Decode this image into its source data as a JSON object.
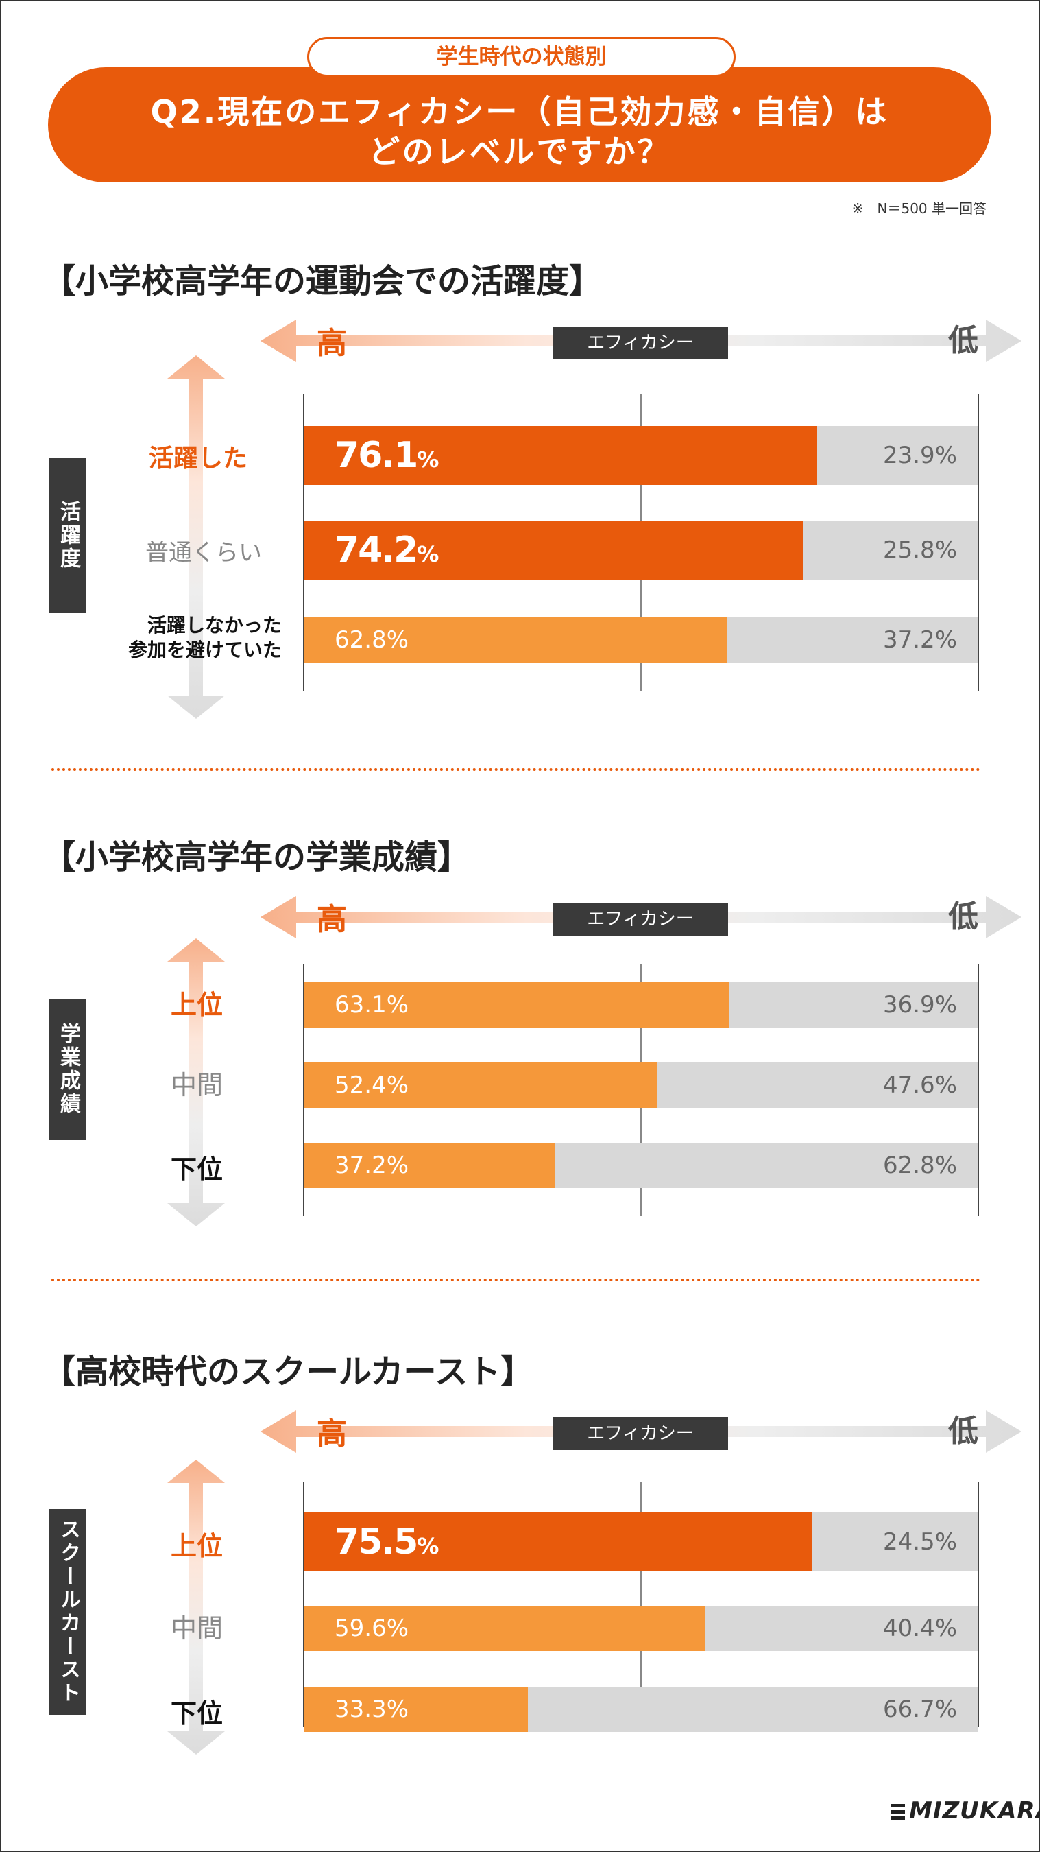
{
  "header": {
    "pill": "学生時代の状態別",
    "title_line1": "Q2.現在のエフィカシー（自己効力感・自信）は",
    "title_line2": "どのレベルですか？",
    "note": "※　N＝500 単一回答"
  },
  "axis": {
    "high": "高",
    "low": "低",
    "efficacy": "エフィカシー"
  },
  "colors": {
    "accent": "#e85a0c",
    "light_orange": "#f5983a",
    "gray_bar": "#d8d8d8",
    "dark_label": "#3a3a3a"
  },
  "chart_data": [
    {
      "type": "bar",
      "stacked": true,
      "orientation": "horizontal",
      "title": "【小学校高学年の運動会での活躍度】",
      "side_label": "活躍度",
      "categories": [
        "活躍した",
        "普通くらい",
        "活躍しなかった\n参加を避けていた"
      ],
      "category_lines": [
        [
          "活躍した"
        ],
        [
          "普通くらい"
        ],
        [
          "活躍しなかった",
          "参加を避けていた"
        ]
      ],
      "series": [
        {
          "name": "高",
          "values": [
            76.1,
            74.2,
            62.8
          ]
        },
        {
          "name": "低",
          "values": [
            23.9,
            25.8,
            37.2
          ]
        }
      ],
      "labels_high": [
        "76.1%",
        "74.2%",
        "62.8%"
      ],
      "labels_low": [
        "23.9%",
        "25.8%",
        "37.2%"
      ],
      "xlim": [
        0,
        100
      ]
    },
    {
      "type": "bar",
      "stacked": true,
      "orientation": "horizontal",
      "title": "【小学校高学年の学業成績】",
      "side_label": "学業成績",
      "categories": [
        "上位",
        "中間",
        "下位"
      ],
      "category_lines": [
        [
          "上位"
        ],
        [
          "中間"
        ],
        [
          "下位"
        ]
      ],
      "series": [
        {
          "name": "高",
          "values": [
            63.1,
            52.4,
            37.2
          ]
        },
        {
          "name": "低",
          "values": [
            36.9,
            47.6,
            62.8
          ]
        }
      ],
      "labels_high": [
        "63.1%",
        "52.4%",
        "37.2%"
      ],
      "labels_low": [
        "36.9%",
        "47.6%",
        "62.8%"
      ],
      "xlim": [
        0,
        100
      ]
    },
    {
      "type": "bar",
      "stacked": true,
      "orientation": "horizontal",
      "title": "【高校時代のスクールカースト】",
      "side_label": "スクールカースト",
      "categories": [
        "上位",
        "中間",
        "下位"
      ],
      "category_lines": [
        [
          "上位"
        ],
        [
          "中間"
        ],
        [
          "下位"
        ]
      ],
      "series": [
        {
          "name": "高",
          "values": [
            75.5,
            59.6,
            33.3
          ]
        },
        {
          "name": "低",
          "values": [
            24.5,
            40.4,
            66.7
          ]
        }
      ],
      "labels_high": [
        "75.5%",
        "59.6%",
        "33.3%"
      ],
      "labels_low": [
        "24.5%",
        "40.4%",
        "66.7%"
      ],
      "xlim": [
        0,
        100
      ]
    }
  ],
  "logo": "MIZUKARA"
}
